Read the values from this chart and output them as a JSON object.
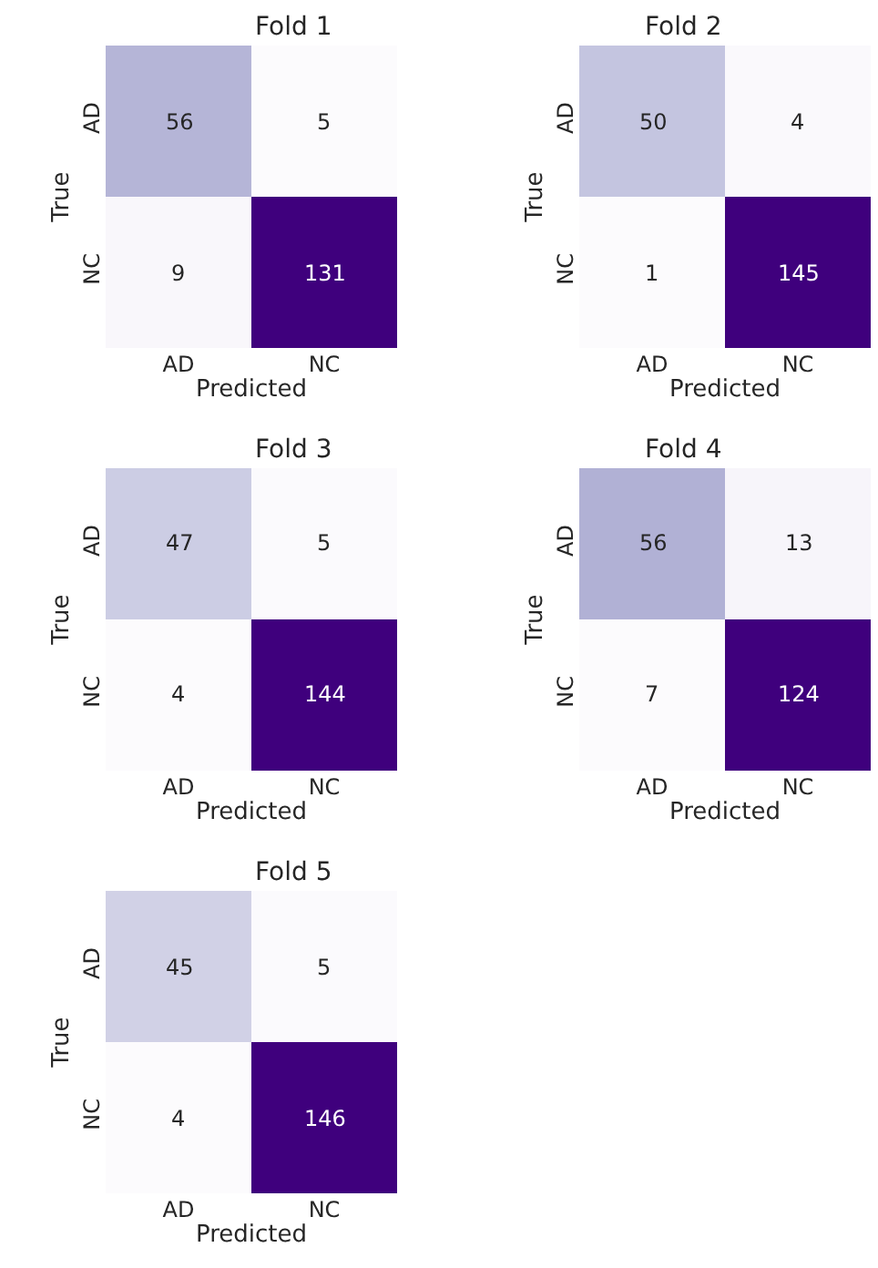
{
  "chart_data": [
    {
      "type": "heatmap",
      "title": "Fold 1",
      "xlabel": "Predicted",
      "ylabel": "True",
      "categories": [
        "AD",
        "NC"
      ],
      "y_categories": [
        "AD",
        "NC"
      ],
      "cells": [
        [
          56,
          5
        ],
        [
          9,
          131
        ]
      ],
      "data_labels": true
    },
    {
      "type": "heatmap",
      "title": "Fold 2",
      "xlabel": "Predicted",
      "ylabel": "True",
      "categories": [
        "AD",
        "NC"
      ],
      "y_categories": [
        "AD",
        "NC"
      ],
      "cells": [
        [
          50,
          4
        ],
        [
          1,
          145
        ]
      ],
      "data_labels": true
    },
    {
      "type": "heatmap",
      "title": "Fold 3",
      "xlabel": "Predicted",
      "ylabel": "True",
      "categories": [
        "AD",
        "NC"
      ],
      "y_categories": [
        "AD",
        "NC"
      ],
      "cells": [
        [
          47,
          5
        ],
        [
          4,
          144
        ]
      ],
      "data_labels": true
    },
    {
      "type": "heatmap",
      "title": "Fold 4",
      "xlabel": "Predicted",
      "ylabel": "True",
      "categories": [
        "AD",
        "NC"
      ],
      "y_categories": [
        "AD",
        "NC"
      ],
      "cells": [
        [
          56,
          13
        ],
        [
          7,
          124
        ]
      ],
      "data_labels": true
    },
    {
      "type": "heatmap",
      "title": "Fold 5",
      "xlabel": "Predicted",
      "ylabel": "True",
      "categories": [
        "AD",
        "NC"
      ],
      "y_categories": [
        "AD",
        "NC"
      ],
      "cells": [
        [
          45,
          5
        ],
        [
          4,
          146
        ]
      ],
      "data_labels": true
    }
  ]
}
